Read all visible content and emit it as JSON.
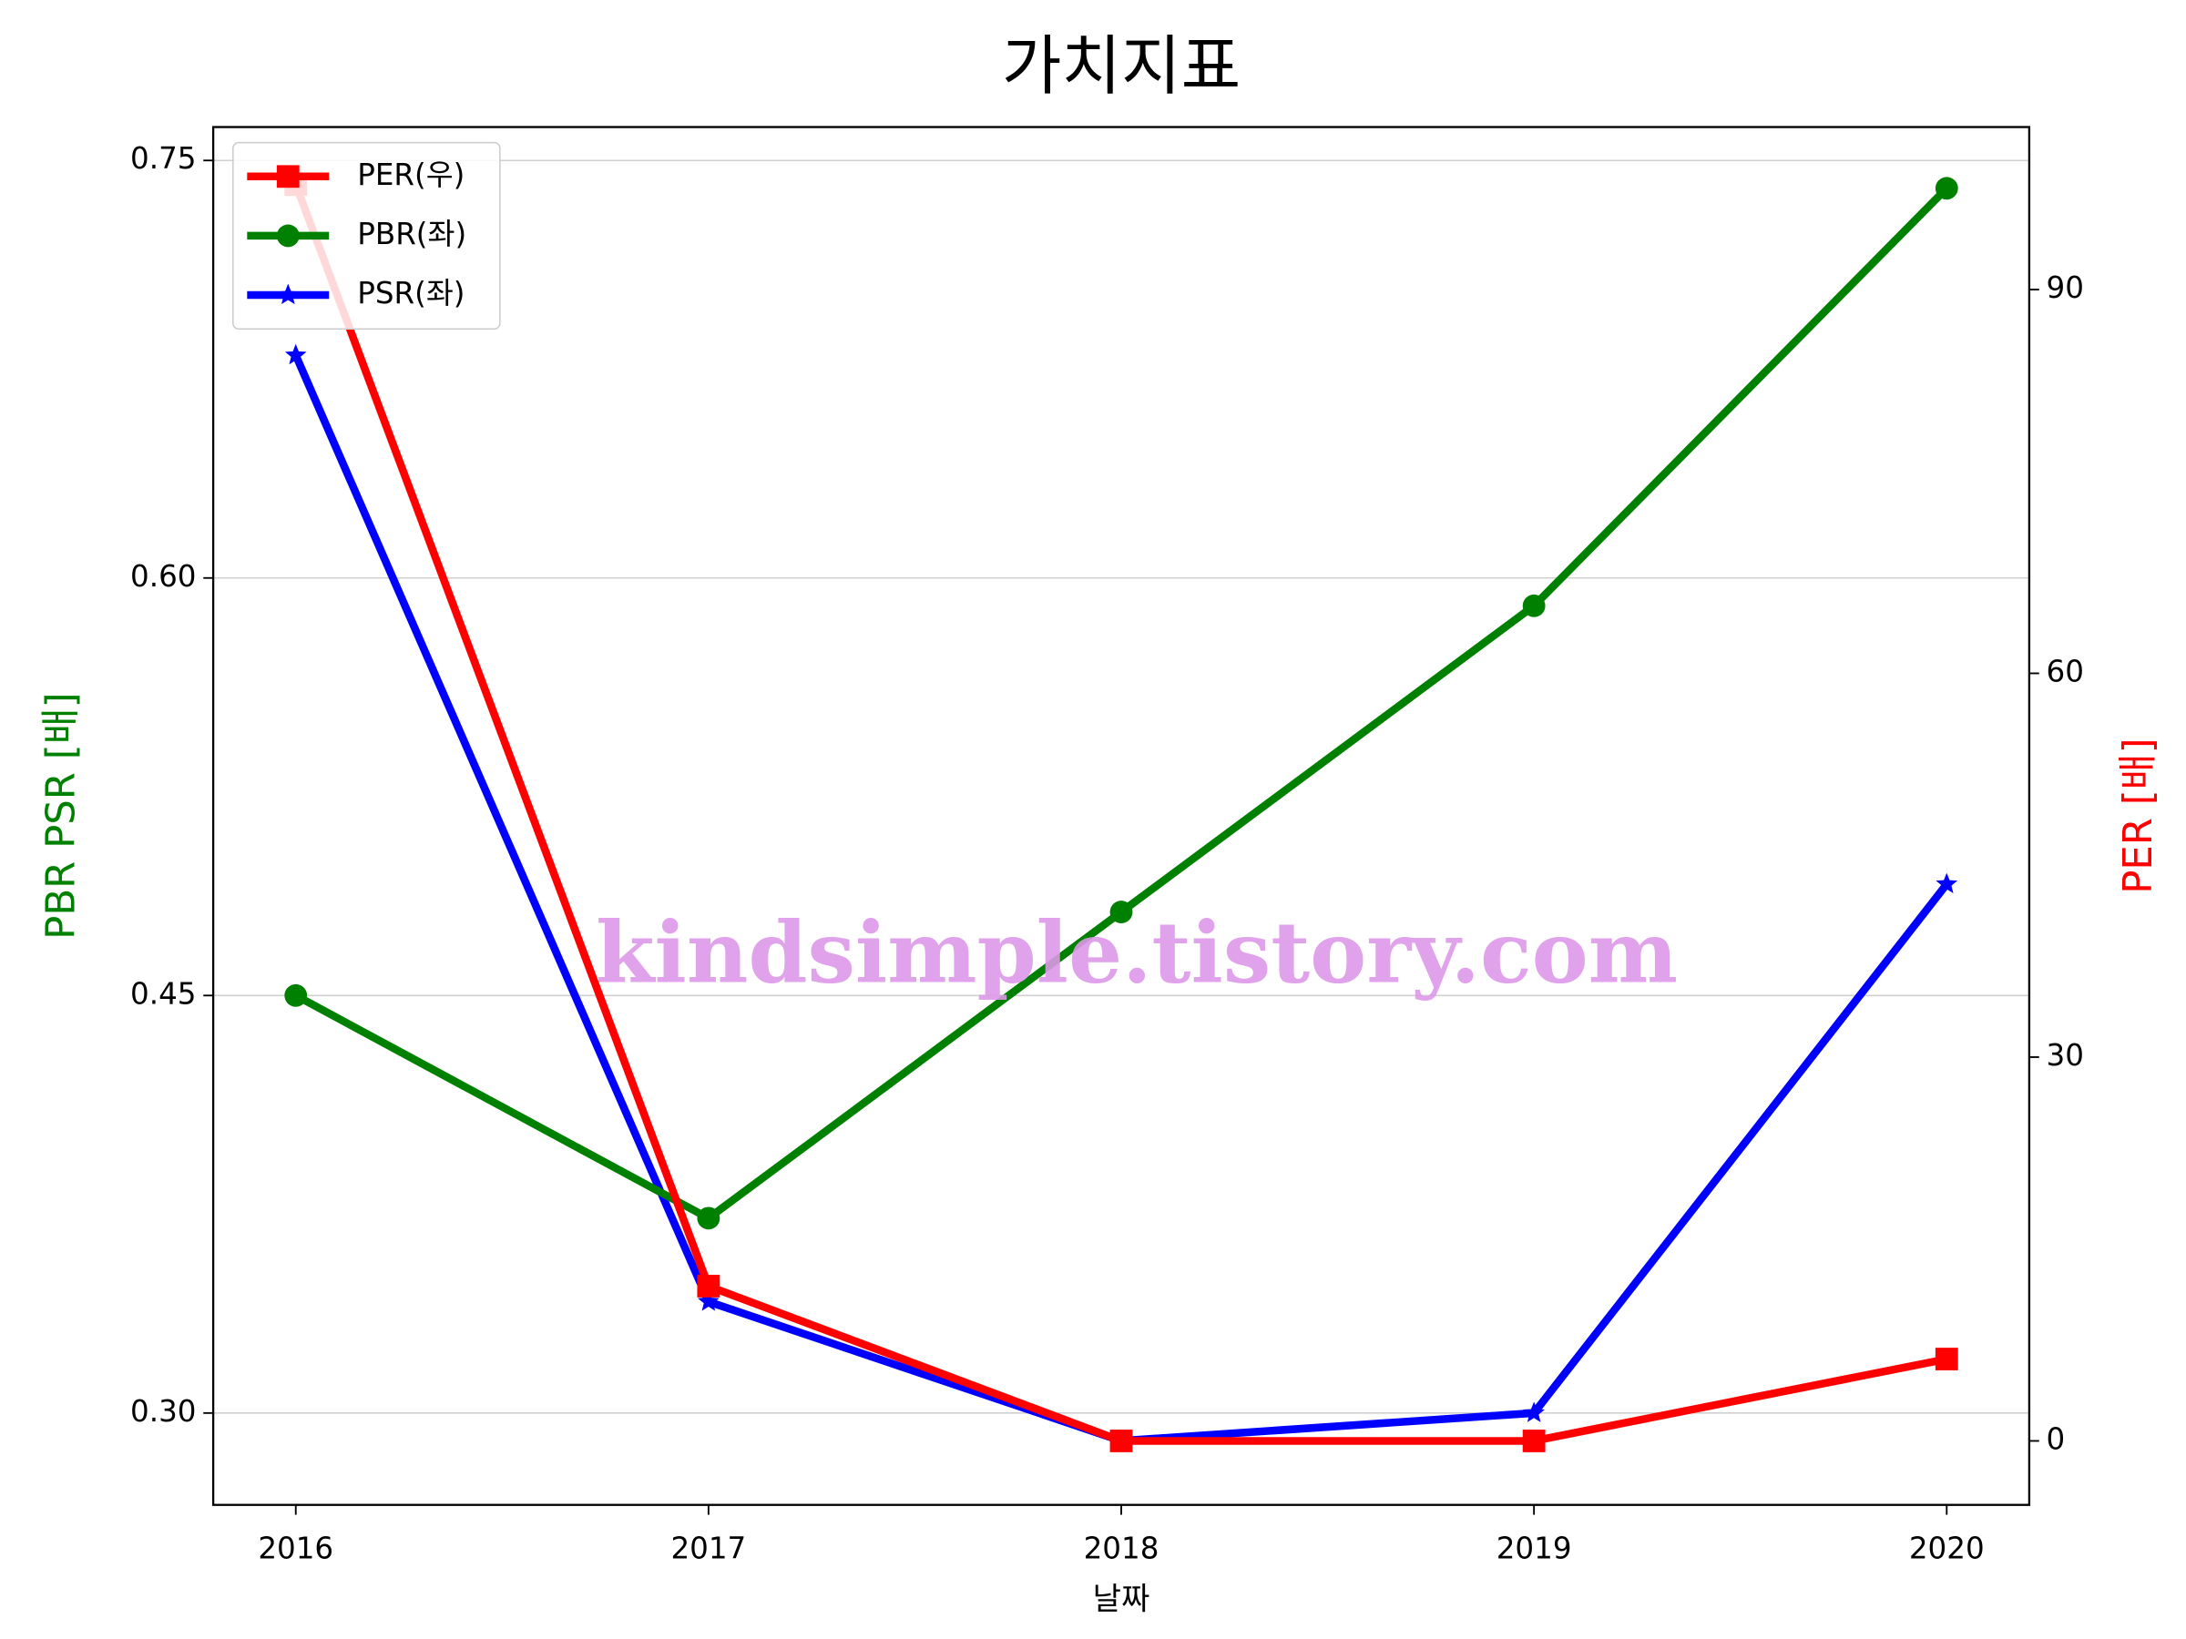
{
  "chart_data": {
    "type": "line",
    "title": "가치지표",
    "xlabel": "날짜",
    "ylabel": "PBR PSR [배]",
    "ylabel_color": "green",
    "y2label": "PER [배]",
    "y2label_color": "red",
    "watermark": "kindsimple.tistory.com",
    "x": [
      2016,
      2017,
      2018,
      2019,
      2020
    ],
    "xlim": [
      2015.8,
      2020.2
    ],
    "xticks": [
      2016,
      2017,
      2018,
      2019,
      2020
    ],
    "ylim": [
      0.267,
      0.762
    ],
    "yticks": [
      {
        "value": 0.3,
        "label": "0.30"
      },
      {
        "value": 0.45,
        "label": "0.45"
      },
      {
        "value": 0.6,
        "label": "0.60"
      },
      0.75
    ],
    "y2lim": [
      -5,
      102.7
    ],
    "y2ticks": [
      0,
      30,
      60,
      90
    ],
    "grid": true,
    "legend": "upper left",
    "series": [
      {
        "name": "PER(우)",
        "color": "red",
        "marker": "square",
        "axis": "y2",
        "values": [
          98.2,
          12.1,
          0,
          0,
          6.4
        ]
      },
      {
        "name": "PBR(좌)",
        "color": "green",
        "marker": "circle",
        "values": [
          0.45,
          0.37,
          0.48,
          0.59,
          0.74
        ]
      },
      {
        "name": "PSR(좌)",
        "color": "blue",
        "marker": "star",
        "values": [
          0.68,
          0.34,
          0.29,
          0.3,
          0.49
        ]
      }
    ]
  }
}
